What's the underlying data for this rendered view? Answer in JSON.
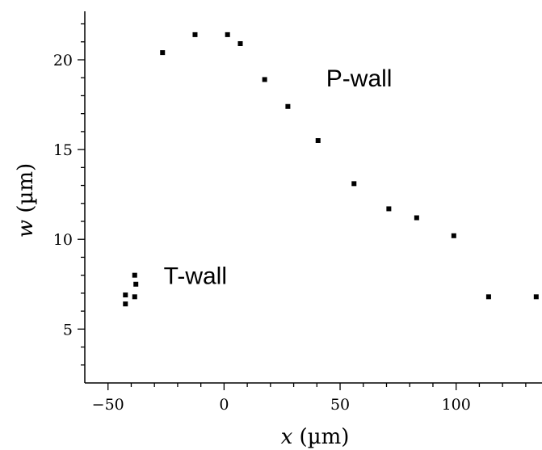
{
  "chart_data": {
    "type": "scatter",
    "title": "",
    "xlabel_var": "x",
    "xlabel_unit": " (µm)",
    "ylabel_var": "w",
    "ylabel_unit": " (µm)",
    "xlim": [
      -60,
      137
    ],
    "ylim": [
      2,
      22.7
    ],
    "x_ticks": [
      -50,
      0,
      50,
      100
    ],
    "x_tick_labels": [
      "−50",
      "0",
      "50",
      "100"
    ],
    "x_minor_ticks": [
      -40,
      -30,
      -20,
      -10,
      10,
      20,
      30,
      40,
      60,
      70,
      80,
      90,
      110,
      120,
      130
    ],
    "y_ticks": [
      5,
      10,
      15,
      20
    ],
    "y_tick_labels": [
      "5",
      "10",
      "15",
      "20"
    ],
    "y_minor_ticks": [
      3,
      4,
      6,
      7,
      8,
      9,
      11,
      12,
      13,
      14,
      16,
      17,
      18,
      19,
      21,
      22
    ],
    "grid": false,
    "legend": "none",
    "series": [
      {
        "points": [
          {
            "x": -42.5,
            "y": 6.9
          },
          {
            "x": -42.5,
            "y": 6.4
          },
          {
            "x": -38.5,
            "y": 6.8
          },
          {
            "x": -38.0,
            "y": 7.5
          },
          {
            "x": -38.5,
            "y": 8.0
          },
          {
            "x": -26.5,
            "y": 20.4
          },
          {
            "x": -12.5,
            "y": 21.4
          },
          {
            "x": 1.5,
            "y": 21.4
          },
          {
            "x": 7.0,
            "y": 20.9
          },
          {
            "x": 17.5,
            "y": 18.9
          },
          {
            "x": 27.5,
            "y": 17.4
          },
          {
            "x": 40.5,
            "y": 15.5
          },
          {
            "x": 56.0,
            "y": 13.1
          },
          {
            "x": 71.0,
            "y": 11.7
          },
          {
            "x": 83.0,
            "y": 11.2
          },
          {
            "x": 99.0,
            "y": 10.2
          },
          {
            "x": 114.0,
            "y": 6.8
          },
          {
            "x": 134.5,
            "y": 6.8
          }
        ]
      }
    ],
    "annotations": [
      {
        "text": "P-wall",
        "x": 44,
        "y": 19.0
      },
      {
        "text": "T-wall",
        "x": -26,
        "y": 8.0
      }
    ],
    "colors": {
      "marker": "#000000",
      "axis": "#000000",
      "background": "#ffffff"
    }
  }
}
